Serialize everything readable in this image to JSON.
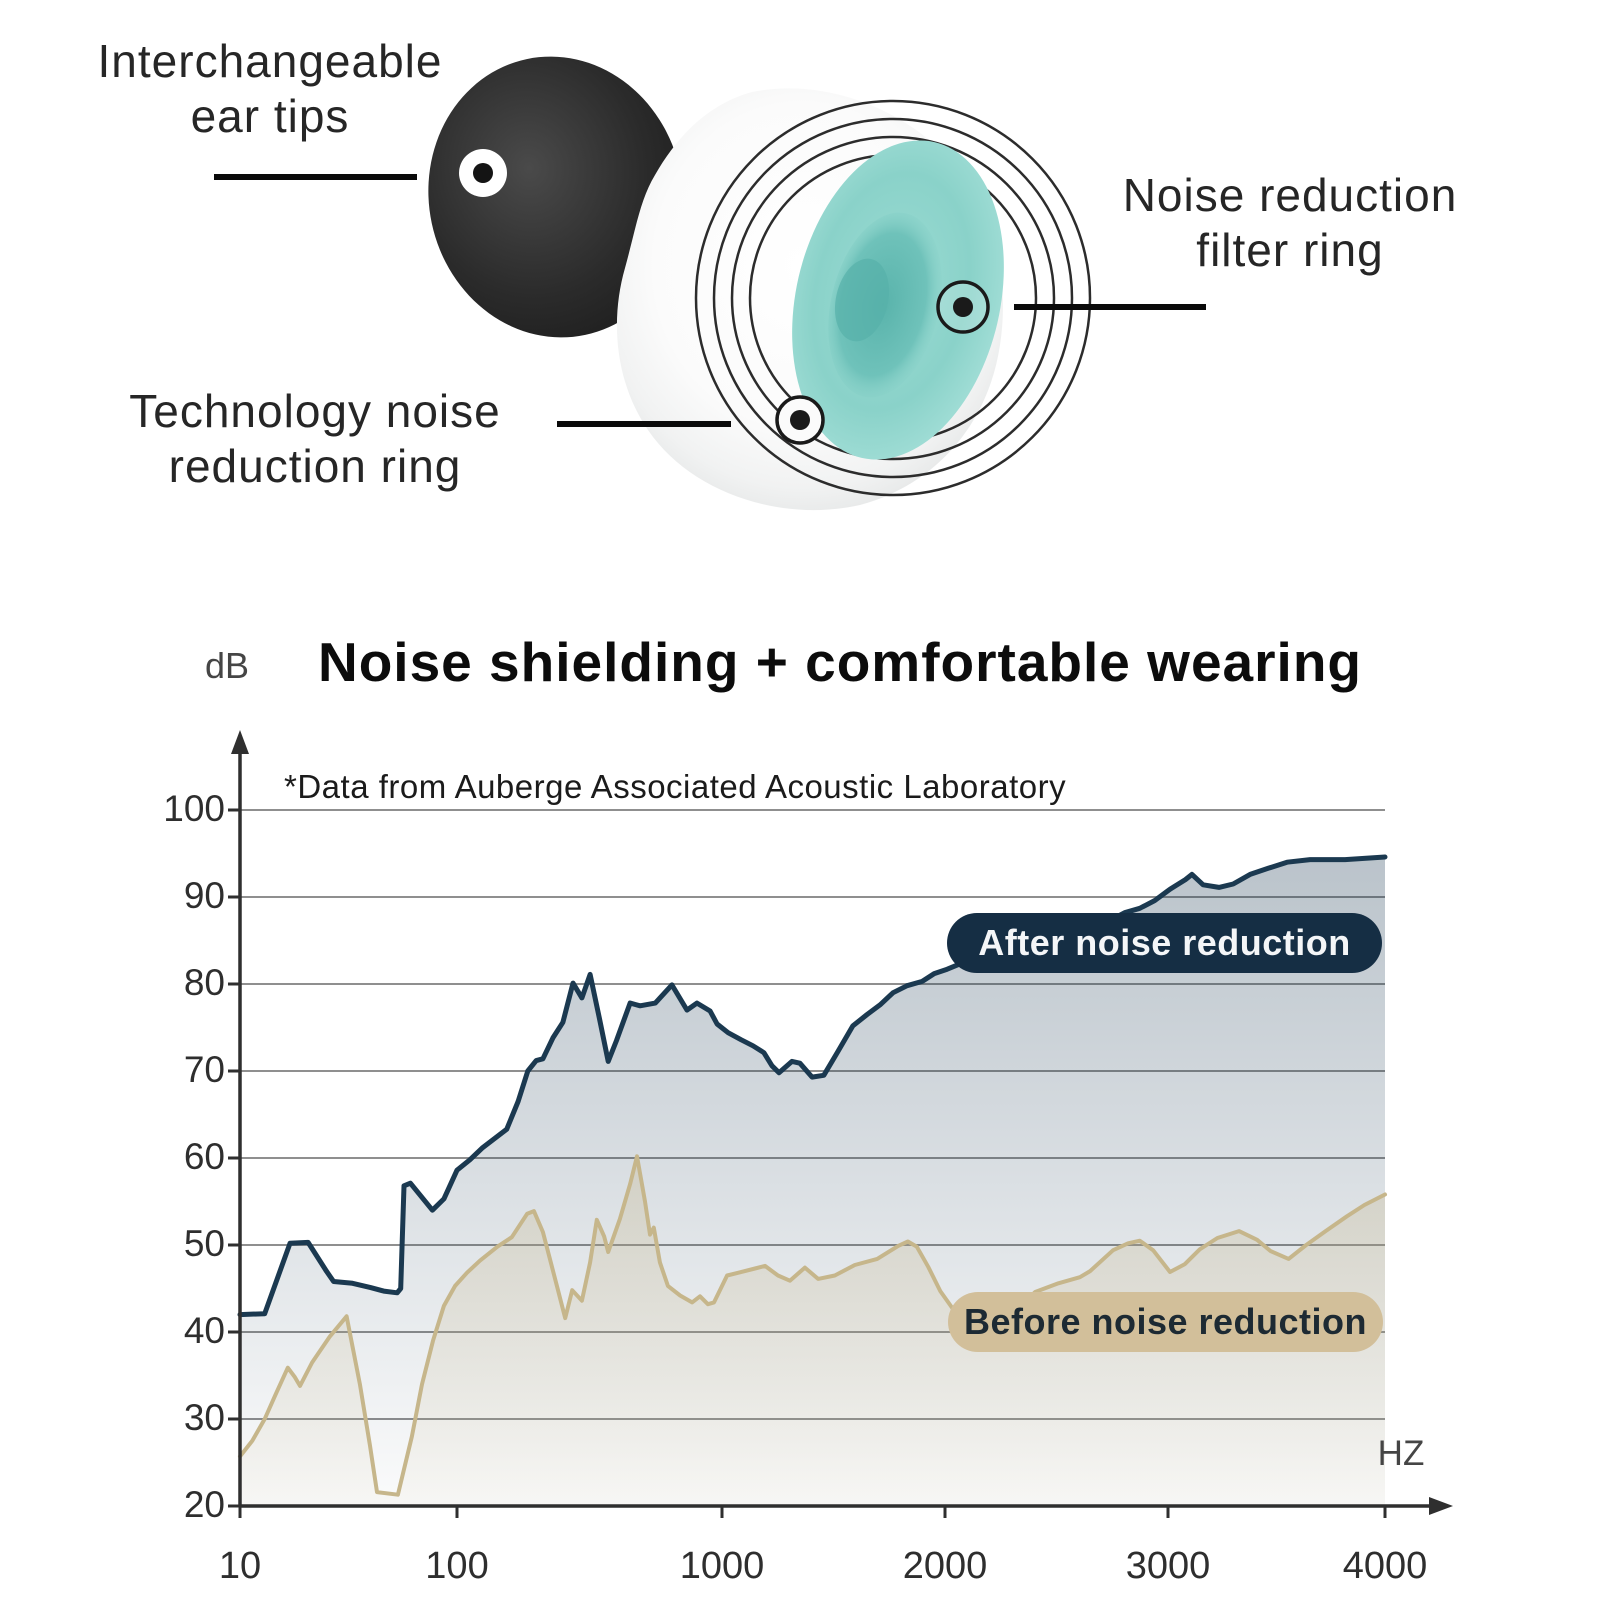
{
  "product": {
    "callouts": [
      {
        "line1": "Interchangeable",
        "line2": "ear tips"
      },
      {
        "line1": "Noise reduction",
        "line2": "filter ring"
      },
      {
        "line1": "Technology noise",
        "line2": "reduction ring"
      }
    ],
    "colors": {
      "ear_tip": "#2d2d2d",
      "body": "#f7f7f7",
      "filter_disc": "#8ed5cc",
      "ring_lines": "#2c2c2c"
    }
  },
  "chart_data": {
    "type": "area",
    "title": "Noise shielding + comfortable wearing",
    "subtitle": "*Data from Auberge Associated Acoustic Laboratory",
    "y_unit": "dB",
    "x_unit": "HZ",
    "ylim": [
      20,
      100
    ],
    "y_ticks": [
      100,
      90,
      80,
      70,
      60,
      50,
      40,
      30,
      20
    ],
    "x_ticks": [
      10,
      100,
      1000,
      2000,
      3000,
      4000
    ],
    "grid": true,
    "legend_position": "on-chart",
    "series": [
      {
        "name": "After noise reduction",
        "line_color": "#1b3950",
        "pill_bg": "#152e44",
        "pill_text": "#f4f6f8",
        "points": [
          [
            10,
            42
          ],
          [
            13,
            42.1
          ],
          [
            17,
            50.2
          ],
          [
            20.6,
            50.3
          ],
          [
            25,
            47
          ],
          [
            27,
            45.8
          ],
          [
            33,
            45.6
          ],
          [
            40,
            45.1
          ],
          [
            46,
            44.7
          ],
          [
            53,
            44.5
          ],
          [
            55,
            45
          ],
          [
            57,
            56.8
          ],
          [
            61,
            57.1
          ],
          [
            77,
            54
          ],
          [
            87,
            55.3
          ],
          [
            100,
            58.6
          ],
          [
            112,
            59.8
          ],
          [
            125,
            61.2
          ],
          [
            154,
            63.3
          ],
          [
            170,
            66.5
          ],
          [
            185,
            70
          ],
          [
            199,
            71.2
          ],
          [
            211,
            71.4
          ],
          [
            230,
            73.8
          ],
          [
            251,
            75.6
          ],
          [
            274,
            80.1
          ],
          [
            296,
            78.4
          ],
          [
            318,
            81.1
          ],
          [
            345,
            76
          ],
          [
            372,
            71.1
          ],
          [
            400,
            73.5
          ],
          [
            450,
            77.8
          ],
          [
            491,
            77.5
          ],
          [
            560,
            77.8
          ],
          [
            647,
            79.9
          ],
          [
            738,
            77
          ],
          [
            805,
            77.8
          ],
          [
            902,
            76.9
          ],
          [
            958,
            75.4
          ],
          [
            1019,
            74.4
          ],
          [
            1061,
            73.6
          ],
          [
            1101,
            72.9
          ],
          [
            1139,
            72.1
          ],
          [
            1168,
            70.6
          ],
          [
            1194,
            69.8
          ],
          [
            1243,
            71.1
          ],
          [
            1274,
            70.9
          ],
          [
            1323,
            69.3
          ],
          [
            1372,
            69.5
          ],
          [
            1433,
            72.2
          ],
          [
            1502,
            75.2
          ],
          [
            1570,
            76.5
          ],
          [
            1634,
            77.6
          ],
          [
            1702,
            79
          ],
          [
            1778,
            79.8
          ],
          [
            1863,
            80.3
          ],
          [
            1934,
            81.2
          ],
          [
            2008,
            81.7
          ],
          [
            2151,
            83.5
          ],
          [
            2313,
            85.2
          ],
          [
            2464,
            86.3
          ],
          [
            2627,
            87.2
          ],
          [
            2699,
            87.3
          ],
          [
            2773,
            88.2
          ],
          [
            2850,
            88.7
          ],
          [
            2929,
            89.6
          ],
          [
            3008,
            90.9
          ],
          [
            3070,
            92
          ],
          [
            3097,
            92.6
          ],
          [
            3143,
            91.4
          ],
          [
            3210,
            91.1
          ],
          [
            3271,
            91.5
          ],
          [
            3345,
            92.6
          ],
          [
            3426,
            93.3
          ],
          [
            3513,
            94
          ],
          [
            3622,
            94.3
          ],
          [
            3794,
            94.3
          ],
          [
            4000,
            94.6
          ]
        ]
      },
      {
        "name": "Before noise reduction",
        "line_color": "#c6b68b",
        "pill_bg": "#d2bf9a",
        "pill_text": "#1d2a33",
        "points": [
          [
            10,
            25.7
          ],
          [
            11.4,
            27.5
          ],
          [
            13,
            30
          ],
          [
            14.7,
            33
          ],
          [
            16.6,
            35.9
          ],
          [
            17.9,
            34.8
          ],
          [
            18.9,
            33.8
          ],
          [
            21.5,
            36.5
          ],
          [
            26,
            39.5
          ],
          [
            31,
            41.8
          ],
          [
            35.7,
            34
          ],
          [
            39.7,
            27
          ],
          [
            42.8,
            21.6
          ],
          [
            53.4,
            21.3
          ],
          [
            62,
            28
          ],
          [
            69,
            34
          ],
          [
            77.5,
            39
          ],
          [
            87,
            43
          ],
          [
            98,
            45.3
          ],
          [
            109,
            46.8
          ],
          [
            122,
            48.2
          ],
          [
            142,
            49.8
          ],
          [
            161,
            50.9
          ],
          [
            184,
            53.6
          ],
          [
            195,
            53.9
          ],
          [
            211,
            51.5
          ],
          [
            226,
            48
          ],
          [
            240,
            44.9
          ],
          [
            256,
            41.6
          ],
          [
            272,
            44.8
          ],
          [
            296,
            43.6
          ],
          [
            318,
            48
          ],
          [
            337,
            52.9
          ],
          [
            359,
            51
          ],
          [
            372,
            49.2
          ],
          [
            412,
            53
          ],
          [
            450,
            57
          ],
          [
            478,
            60.2
          ],
          [
            512,
            55
          ],
          [
            535,
            51.2
          ],
          [
            553,
            52
          ],
          [
            583,
            48
          ],
          [
            625,
            45.3
          ],
          [
            695,
            44.2
          ],
          [
            771,
            43.4
          ],
          [
            826,
            44.1
          ],
          [
            885,
            43.2
          ],
          [
            933,
            43.4
          ],
          [
            1016,
            46.5
          ],
          [
            1051,
            46.8
          ],
          [
            1108,
            47.3
          ],
          [
            1143,
            47.6
          ],
          [
            1190,
            46.5
          ],
          [
            1235,
            45.9
          ],
          [
            1294,
            47.4
          ],
          [
            1348,
            46.1
          ],
          [
            1420,
            46.5
          ],
          [
            1511,
            47.7
          ],
          [
            1620,
            48.4
          ],
          [
            1729,
            49.9
          ],
          [
            1782,
            50.4
          ],
          [
            1832,
            49.8
          ],
          [
            1898,
            47.5
          ],
          [
            1971,
            44.7
          ],
          [
            2037,
            42.3
          ],
          [
            2114,
            40.8
          ],
          [
            2198,
            41.5
          ],
          [
            2304,
            43.2
          ],
          [
            2356,
            44.6
          ],
          [
            2458,
            45.6
          ],
          [
            2556,
            46.3
          ],
          [
            2604,
            47
          ],
          [
            2715,
            49.4
          ],
          [
            2790,
            50.2
          ],
          [
            2850,
            50.5
          ],
          [
            2920,
            49.4
          ],
          [
            3008,
            46.9
          ],
          [
            3068,
            47.8
          ],
          [
            3129,
            49.5
          ],
          [
            3203,
            50.8
          ],
          [
            3296,
            51.6
          ],
          [
            3376,
            50.6
          ],
          [
            3437,
            49.3
          ],
          [
            3520,
            48.4
          ],
          [
            3603,
            50
          ],
          [
            3697,
            51.6
          ],
          [
            3803,
            53.3
          ],
          [
            3892,
            54.6
          ],
          [
            4000,
            55.8
          ]
        ]
      }
    ]
  }
}
